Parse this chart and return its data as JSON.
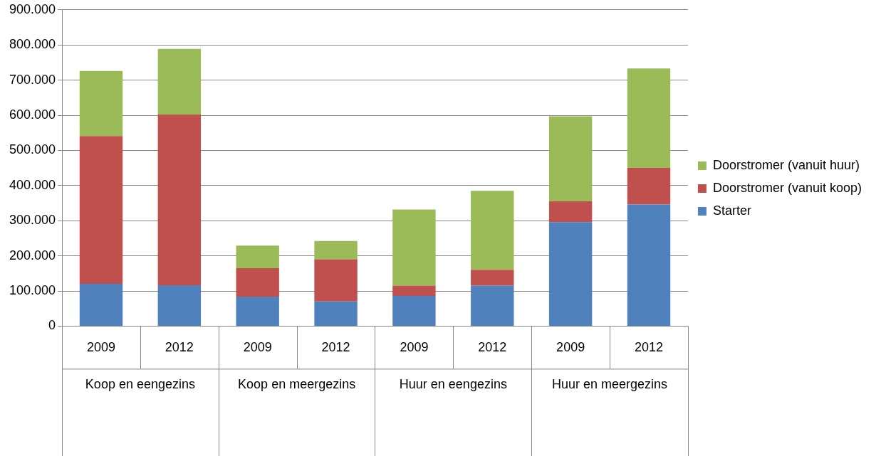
{
  "chart_data": {
    "type": "bar",
    "stacked": true,
    "categories": [
      "2009",
      "2012",
      "2009",
      "2012",
      "2009",
      "2012",
      "2009",
      "2012"
    ],
    "series": [
      {
        "name": "Starter",
        "color": "#4f81bd",
        "values": [
          120000,
          116000,
          84000,
          70000,
          86000,
          115000,
          296000,
          346000
        ]
      },
      {
        "name": "Doorstromer (vanuit koop)",
        "color": "#c0504d",
        "values": [
          421000,
          486000,
          81000,
          120000,
          29000,
          45000,
          59000,
          104000
        ]
      },
      {
        "name": "Doorstromer (vanuit huur)",
        "color": "#9bbb59",
        "values": [
          185000,
          187000,
          64000,
          52000,
          217000,
          225000,
          242000,
          283000
        ]
      }
    ],
    "annotations": [
      "Koop en eengezins",
      "Koop en meergezins",
      "Huur en eengezins",
      "Huur en meergezins"
    ],
    "ylim": [
      0,
      900000
    ],
    "yticks": [
      {
        "value": 0,
        "label": "0"
      },
      {
        "value": 100000,
        "label": "100.000"
      },
      {
        "value": 200000,
        "label": "200.000"
      },
      {
        "value": 300000,
        "label": "300.000"
      },
      {
        "value": 400000,
        "label": "400.000"
      },
      {
        "value": 500000,
        "label": "500.000"
      },
      {
        "value": 600000,
        "label": "600.000"
      },
      {
        "value": 700000,
        "label": "700.000"
      },
      {
        "value": 800000,
        "label": "800.000"
      },
      {
        "value": 900000,
        "label": "900.000"
      }
    ],
    "grid": "y",
    "legend": "right"
  }
}
